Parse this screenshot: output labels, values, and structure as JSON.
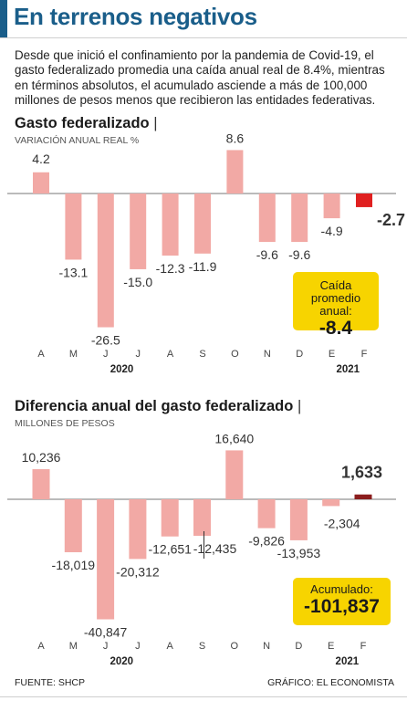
{
  "header": {
    "title": "En terrenos negativos"
  },
  "intro": "Desde que inició el confinamiento por la pandemia de Covid-19, el gasto federalizado promedia una caída anual real de 8.4%, mientras en términos absolutos, el acumulado asciende a más de 100,000 millones de pesos menos que recibieron las entidades federativas.",
  "section1": {
    "title": "Gasto federalizado",
    "title_bar": "|",
    "subtitle": "VARIACIÓN ANUAL REAL %"
  },
  "section2": {
    "title": "Diferencia anual del gasto federalizado",
    "title_bar": "|",
    "subtitle": "MILLONES DE PESOS"
  },
  "callout1": {
    "label": "Caída promedio anual:",
    "value": "-8.4"
  },
  "callout2": {
    "label": "Acumulado:",
    "value": "-101,837"
  },
  "footer": {
    "source": "FUENTE: SHCP",
    "credit": "GRÁFICO: EL ECONOMISTA"
  },
  "colors": {
    "bar": "#f2a9a5",
    "highlight1": "#e02020",
    "highlight2": "#8b1d1d",
    "title": "#1a5e8a",
    "callout": "#f7d400"
  },
  "chart_data": [
    {
      "type": "bar",
      "categories": [
        "A",
        "M",
        "J",
        "J",
        "A",
        "S",
        "O",
        "N",
        "D",
        "E",
        "F"
      ],
      "year_labels": [
        "2020",
        "2021"
      ],
      "values": [
        4.2,
        -13.1,
        -26.5,
        -15.0,
        -12.3,
        -11.9,
        8.6,
        -9.6,
        -9.6,
        -4.9,
        -2.7
      ],
      "labels": [
        "4.2",
        "-13.1",
        "-26.5",
        "-15.0",
        "-12.3",
        "-11.9",
        "8.6",
        "-9.6",
        "-9.6",
        "-4.9",
        "-2.7"
      ],
      "highlight_index": 10,
      "ylim": [
        -28,
        10
      ]
    },
    {
      "type": "bar",
      "categories": [
        "A",
        "M",
        "J",
        "J",
        "A",
        "S",
        "O",
        "N",
        "D",
        "E",
        "F"
      ],
      "year_labels": [
        "2020",
        "2021"
      ],
      "values": [
        10236,
        -18019,
        -40847,
        -20312,
        -12651,
        -12435,
        16640,
        -9826,
        -13953,
        -2304,
        1633
      ],
      "labels": [
        "10,236",
        "-18,019",
        "-40,847",
        "-20,312",
        "-12,651",
        "-12,435",
        "16,640",
        "-9,826",
        "-13,953",
        "-2,304",
        "1,633"
      ],
      "highlight_index": 10,
      "ylim": [
        -42000,
        18000
      ]
    }
  ]
}
